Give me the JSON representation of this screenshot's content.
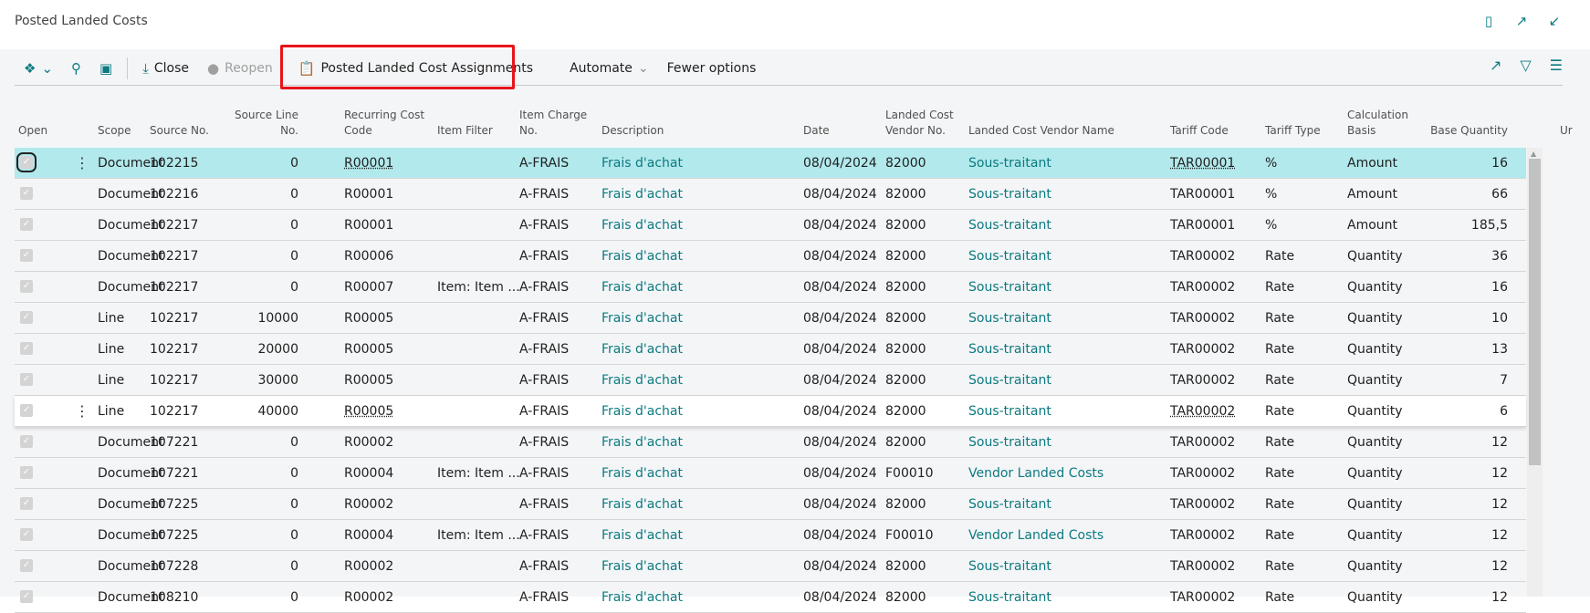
{
  "page": {
    "title": "Posted Landed Costs"
  },
  "header_icons": [
    "bookmark-icon",
    "open-new-window-icon",
    "collapse-icon"
  ],
  "toolbar": {
    "close": "Close",
    "reopen": "Reopen",
    "assignments": "Posted Landed Cost Assignments",
    "automate": "Automate",
    "fewer": "Fewer options"
  },
  "accent": "#0b7a80",
  "columns": [
    "Open",
    "Scope",
    "Source No.",
    "Source Line No.",
    "Recurring Cost Code",
    "Item Filter",
    "Item Charge No.",
    "Description",
    "Date",
    "Landed Cost Vendor No.",
    "Landed Cost Vendor Name",
    "Tariff Code",
    "Tariff Type",
    "Calculation Basis",
    "Base Quantity",
    "Ur"
  ],
  "rows": [
    {
      "scope": "Document",
      "src": "102215",
      "line": "0",
      "rec": "R00001",
      "filter": "",
      "charge": "A-FRAIS",
      "desc": "Frais d'achat",
      "date": "08/04/2024",
      "vno": "82000",
      "vname": "Sous-traitant",
      "tariff": "TAR00001",
      "ttype": "%",
      "basis": "Amount",
      "qty": "16"
    },
    {
      "scope": "Document",
      "src": "102216",
      "line": "0",
      "rec": "R00001",
      "filter": "",
      "charge": "A-FRAIS",
      "desc": "Frais d'achat",
      "date": "08/04/2024",
      "vno": "82000",
      "vname": "Sous-traitant",
      "tariff": "TAR00001",
      "ttype": "%",
      "basis": "Amount",
      "qty": "66"
    },
    {
      "scope": "Document",
      "src": "102217",
      "line": "0",
      "rec": "R00001",
      "filter": "",
      "charge": "A-FRAIS",
      "desc": "Frais d'achat",
      "date": "08/04/2024",
      "vno": "82000",
      "vname": "Sous-traitant",
      "tariff": "TAR00001",
      "ttype": "%",
      "basis": "Amount",
      "qty": "185,5"
    },
    {
      "scope": "Document",
      "src": "102217",
      "line": "0",
      "rec": "R00006",
      "filter": "",
      "charge": "A-FRAIS",
      "desc": "Frais d'achat",
      "date": "08/04/2024",
      "vno": "82000",
      "vname": "Sous-traitant",
      "tariff": "TAR00002",
      "ttype": "Rate",
      "basis": "Quantity",
      "qty": "36"
    },
    {
      "scope": "Document",
      "src": "102217",
      "line": "0",
      "rec": "R00007",
      "filter": "Item: Item ...",
      "charge": "A-FRAIS",
      "desc": "Frais d'achat",
      "date": "08/04/2024",
      "vno": "82000",
      "vname": "Sous-traitant",
      "tariff": "TAR00002",
      "ttype": "Rate",
      "basis": "Quantity",
      "qty": "16"
    },
    {
      "scope": "Line",
      "src": "102217",
      "line": "10000",
      "rec": "R00005",
      "filter": "",
      "charge": "A-FRAIS",
      "desc": "Frais d'achat",
      "date": "08/04/2024",
      "vno": "82000",
      "vname": "Sous-traitant",
      "tariff": "TAR00002",
      "ttype": "Rate",
      "basis": "Quantity",
      "qty": "10"
    },
    {
      "scope": "Line",
      "src": "102217",
      "line": "20000",
      "rec": "R00005",
      "filter": "",
      "charge": "A-FRAIS",
      "desc": "Frais d'achat",
      "date": "08/04/2024",
      "vno": "82000",
      "vname": "Sous-traitant",
      "tariff": "TAR00002",
      "ttype": "Rate",
      "basis": "Quantity",
      "qty": "13"
    },
    {
      "scope": "Line",
      "src": "102217",
      "line": "30000",
      "rec": "R00005",
      "filter": "",
      "charge": "A-FRAIS",
      "desc": "Frais d'achat",
      "date": "08/04/2024",
      "vno": "82000",
      "vname": "Sous-traitant",
      "tariff": "TAR00002",
      "ttype": "Rate",
      "basis": "Quantity",
      "qty": "7"
    },
    {
      "scope": "Line",
      "src": "102217",
      "line": "40000",
      "rec": "R00005",
      "filter": "",
      "charge": "A-FRAIS",
      "desc": "Frais d'achat",
      "date": "08/04/2024",
      "vno": "82000",
      "vname": "Sous-traitant",
      "tariff": "TAR00002",
      "ttype": "Rate",
      "basis": "Quantity",
      "qty": "6"
    },
    {
      "scope": "Document",
      "src": "107221",
      "line": "0",
      "rec": "R00002",
      "filter": "",
      "charge": "A-FRAIS",
      "desc": "Frais d'achat",
      "date": "08/04/2024",
      "vno": "82000",
      "vname": "Sous-traitant",
      "tariff": "TAR00002",
      "ttype": "Rate",
      "basis": "Quantity",
      "qty": "12"
    },
    {
      "scope": "Document",
      "src": "107221",
      "line": "0",
      "rec": "R00004",
      "filter": "Item: Item ...",
      "charge": "A-FRAIS",
      "desc": "Frais d'achat",
      "date": "08/04/2024",
      "vno": "F00010",
      "vname": "Vendor Landed Costs",
      "tariff": "TAR00002",
      "ttype": "Rate",
      "basis": "Quantity",
      "qty": "12"
    },
    {
      "scope": "Document",
      "src": "107225",
      "line": "0",
      "rec": "R00002",
      "filter": "",
      "charge": "A-FRAIS",
      "desc": "Frais d'achat",
      "date": "08/04/2024",
      "vno": "82000",
      "vname": "Sous-traitant",
      "tariff": "TAR00002",
      "ttype": "Rate",
      "basis": "Quantity",
      "qty": "12"
    },
    {
      "scope": "Document",
      "src": "107225",
      "line": "0",
      "rec": "R00004",
      "filter": "Item: Item ...",
      "charge": "A-FRAIS",
      "desc": "Frais d'achat",
      "date": "08/04/2024",
      "vno": "F00010",
      "vname": "Vendor Landed Costs",
      "tariff": "TAR00002",
      "ttype": "Rate",
      "basis": "Quantity",
      "qty": "12"
    },
    {
      "scope": "Document",
      "src": "107228",
      "line": "0",
      "rec": "R00002",
      "filter": "",
      "charge": "A-FRAIS",
      "desc": "Frais d'achat",
      "date": "08/04/2024",
      "vno": "82000",
      "vname": "Sous-traitant",
      "tariff": "TAR00002",
      "ttype": "Rate",
      "basis": "Quantity",
      "qty": "12"
    },
    {
      "scope": "Document",
      "src": "108210",
      "line": "0",
      "rec": "R00002",
      "filter": "",
      "charge": "A-FRAIS",
      "desc": "Frais d'achat",
      "date": "08/04/2024",
      "vno": "82000",
      "vname": "Sous-traitant",
      "tariff": "TAR00002",
      "ttype": "Rate",
      "basis": "Quantity",
      "qty": "12"
    }
  ]
}
